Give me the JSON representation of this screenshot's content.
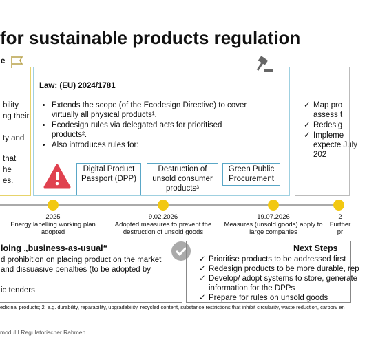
{
  "header": {
    "title": "for sustainable products regulation"
  },
  "left_panel": {
    "heading": "e",
    "lines": [
      "bility",
      "ng their",
      "ty and",
      "that",
      "he",
      "es."
    ]
  },
  "law_panel": {
    "label": "Law:",
    "law": "(EU) 2024/1781",
    "bullets": [
      "Extends the scope (of the Ecodesign Directive) to cover virtually all physical products¹.",
      "Ecodesign rules via delegated acts for prioritised products².",
      "Also introduces rules for:"
    ],
    "boxes": [
      "Digital Product Passport (DPP)",
      "Destruction of unsold consumer products³",
      "Green Public Procurement"
    ]
  },
  "right_panel": {
    "bullets": [
      "Map pro assess t",
      "Redesig",
      "Impleme expecte July 202"
    ]
  },
  "timeline": [
    {
      "date": "2025",
      "text": "Energy labelling working plan adopted"
    },
    {
      "date": "9.02.2026",
      "text": "Adopted measures to prevent the destruction of unsold goods"
    },
    {
      "date": "19.07.2026",
      "text": "Measures (unsold goods) apply to large companies"
    },
    {
      "date": "2",
      "text": "Further pr"
    }
  ],
  "bottom_left": {
    "title": "loing „business-as-usual“",
    "lines": [
      "d prohibition on placing product on the market",
      "and dissuasive penalties (to be adopted by",
      "ic tenders"
    ]
  },
  "next_steps": {
    "title": "Next Steps",
    "items": [
      "Prioritise products to be addressed first",
      "Redesign products to be more durable, rep",
      "Develop/ adopt systems to store, generate information for the DPPs",
      "Prepare for rules on unsold goods"
    ]
  },
  "footnote": "edicinal products; 2. e.g. durability, reparability, upgradability, recycled content, substance restrictions that inhibit circularity, waste reduction, carbon/ en",
  "footer": "modul I Regulatorischer Rahmen"
}
